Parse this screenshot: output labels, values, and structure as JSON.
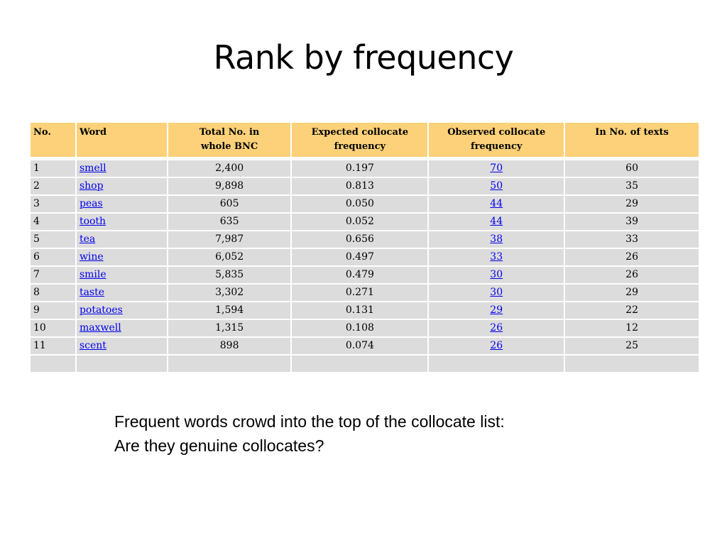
{
  "slide": {
    "title": "Rank by frequency",
    "note_line1": "Frequent words crowd into the top of the collocate list:",
    "note_line2": "Are they genuine collocates?"
  },
  "table": {
    "headers": {
      "no": "No.",
      "word": "Word",
      "total_line1": "Total No. in",
      "total_line2": "whole BNC",
      "expected_line1": "Expected collocate",
      "expected_line2": "frequency",
      "observed_line1": "Observed collocate",
      "observed_line2": "frequency",
      "texts": "In No. of texts"
    },
    "rows": [
      {
        "no": "1",
        "word": "smell",
        "total": "2,400",
        "expected": "0.197",
        "observed": "70",
        "texts": "60"
      },
      {
        "no": "2",
        "word": "shop",
        "total": "9,898",
        "expected": "0.813",
        "observed": "50",
        "texts": "35"
      },
      {
        "no": "3",
        "word": "peas",
        "total": "605",
        "expected": "0.050",
        "observed": "44",
        "texts": "29"
      },
      {
        "no": "4",
        "word": "tooth",
        "total": "635",
        "expected": "0.052",
        "observed": "44",
        "texts": "39"
      },
      {
        "no": "5",
        "word": "tea",
        "total": "7,987",
        "expected": "0.656",
        "observed": "38",
        "texts": "33"
      },
      {
        "no": "6",
        "word": "wine",
        "total": "6,052",
        "expected": "0.497",
        "observed": "33",
        "texts": "26"
      },
      {
        "no": "7",
        "word": "smile",
        "total": "5,835",
        "expected": "0.479",
        "observed": "30",
        "texts": "26"
      },
      {
        "no": "8",
        "word": "taste",
        "total": "3,302",
        "expected": "0.271",
        "observed": "30",
        "texts": "29"
      },
      {
        "no": "9",
        "word": "potatoes",
        "total": "1,594",
        "expected": "0.131",
        "observed": "29",
        "texts": "22"
      },
      {
        "no": "10",
        "word": "maxwell",
        "total": "1,315",
        "expected": "0.108",
        "observed": "26",
        "texts": "12"
      },
      {
        "no": "11",
        "word": "scent",
        "total": "898",
        "expected": "0.074",
        "observed": "26",
        "texts": "25"
      }
    ]
  },
  "colors": {
    "header_bg": "#fdd17a",
    "row_bg": "#dcdcdc",
    "link": "#0000ee"
  }
}
